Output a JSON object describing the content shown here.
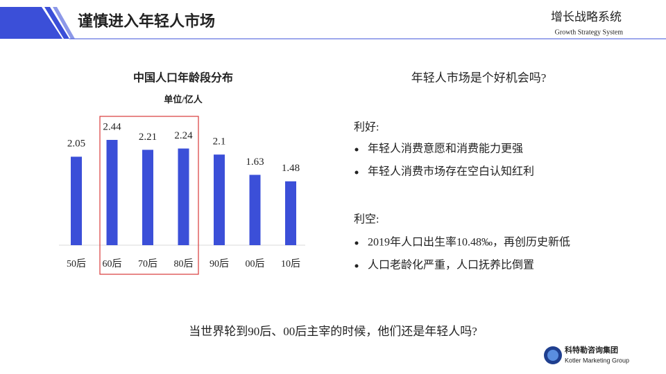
{
  "header": {
    "title": "谨慎进入年轻人市场",
    "brand": "增长战略系统",
    "brand_en": "Growth Strategy System"
  },
  "chart_data": {
    "type": "bar",
    "title": "中国人口年龄段分布",
    "subtitle": "单位/亿人",
    "categories": [
      "50后",
      "60后",
      "70后",
      "80后",
      "90后",
      "00后",
      "10后"
    ],
    "values": [
      2.05,
      2.44,
      2.21,
      2.24,
      2.1,
      1.63,
      1.48
    ],
    "color": "#3b4fd8"
  },
  "panel": {
    "question": "年轻人市场是个好机会吗?",
    "pros": {
      "heading": "利好:",
      "items": [
        "年轻人消费意愿和消费能力更强",
        "年轻人消费市场存在空白认知红利"
      ]
    },
    "cons": {
      "heading": "利空:",
      "items": [
        "2019年人口出生率10.48‰，再创历史新低",
        "人口老龄化严重，人口抚养比倒置"
      ]
    }
  },
  "footer": {
    "text": "当世界轮到90后、00后主宰的时候，他们还是年轻人吗?"
  },
  "logo": {
    "name": "科特勒咨询集团",
    "name_en": "Kotler Marketing Group"
  }
}
